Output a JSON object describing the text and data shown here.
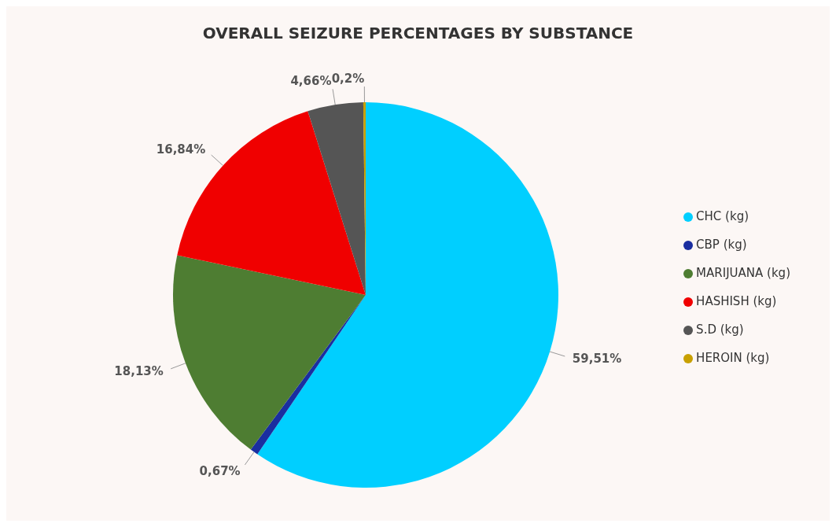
{
  "chart_data": {
    "type": "pie",
    "title": "OVERALL SEIZURE PERCENTAGES BY SUBSTANCE",
    "categories": [
      "CHC (kg)",
      "CBP (kg)",
      "MARIJUANA (kg)",
      "HASHISH (kg)",
      "S.D (kg)",
      "HEROIN (kg)"
    ],
    "values": [
      59.51,
      0.67,
      18.13,
      16.84,
      4.66,
      0.2
    ],
    "value_labels": [
      "59,51%",
      "0,67%",
      "18,13%",
      "16,84%",
      "4,66%",
      "0,2%"
    ],
    "colors": [
      "#00cfff",
      "#1a2ea0",
      "#4e7d32",
      "#f00000",
      "#555555",
      "#c8a000"
    ],
    "legend": "right"
  }
}
